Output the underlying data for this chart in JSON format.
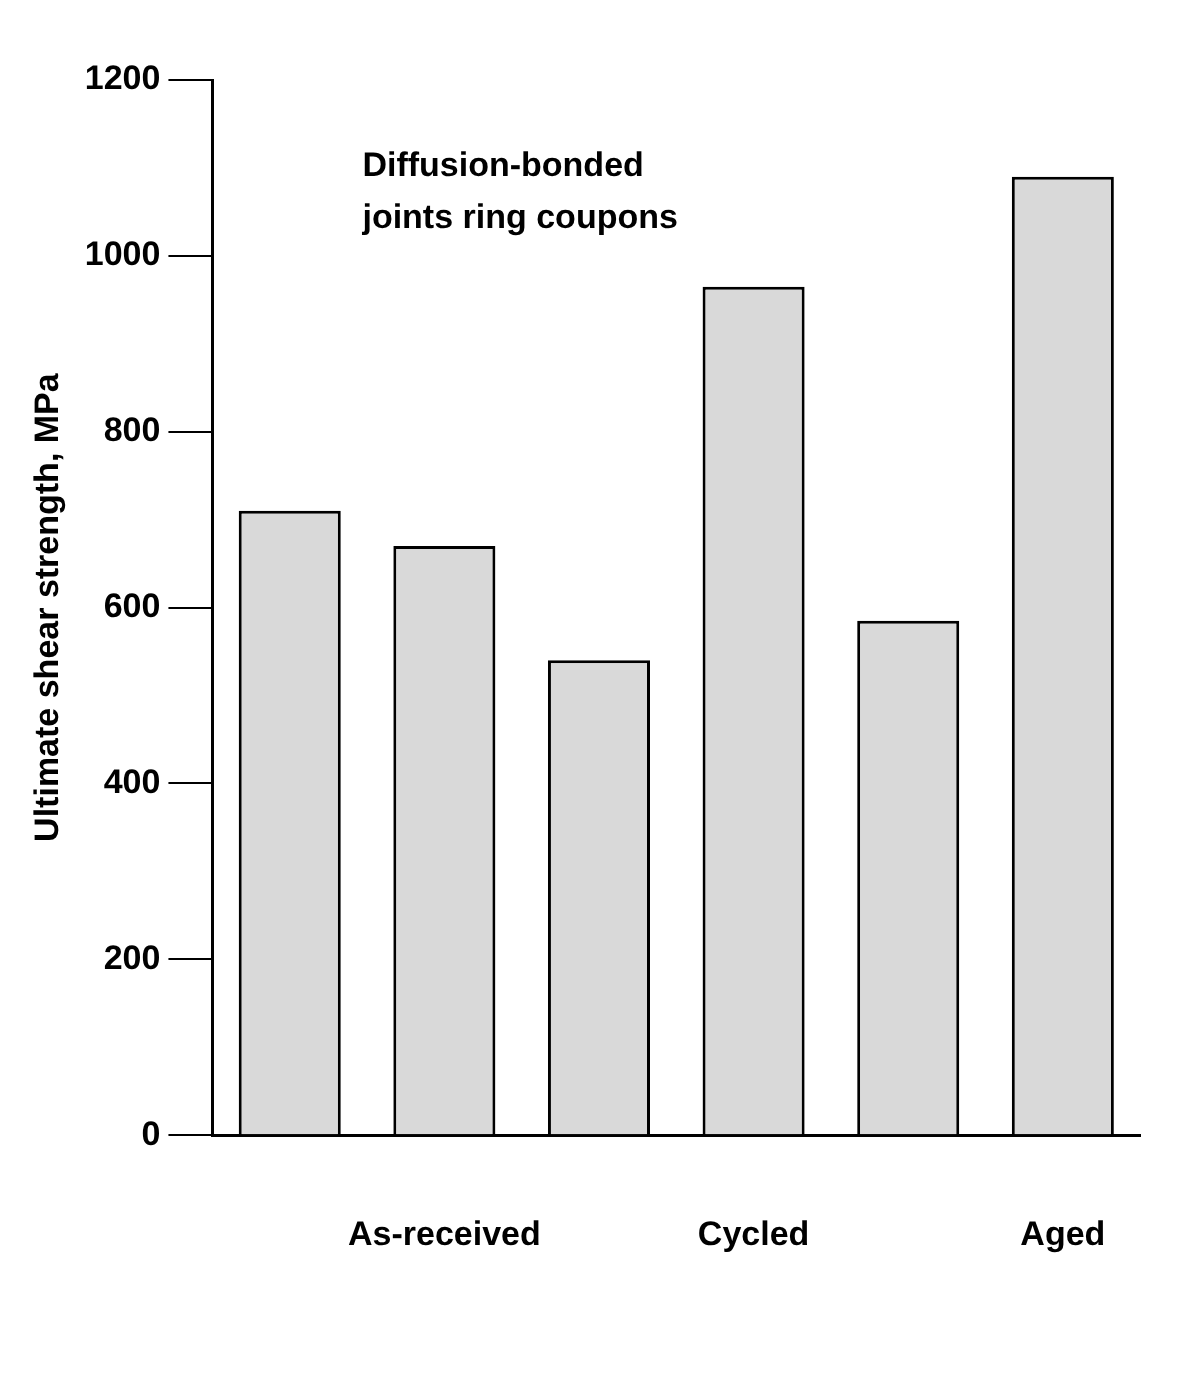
{
  "chart_data": {
    "type": "bar",
    "title": "Diffusion-bonded\njoints ring coupons",
    "ylabel": "Ultimate shear strength, MPa",
    "categories": [
      null,
      "As-received",
      null,
      "Cycled",
      null,
      "Aged"
    ],
    "values": [
      710,
      670,
      540,
      965,
      585,
      1090
    ],
    "color": "#d9d9d9",
    "ylim": [
      0,
      1200
    ],
    "yticks": [
      0,
      200,
      400,
      600,
      800,
      1000,
      1200
    ],
    "grid": false,
    "legend": false
  }
}
